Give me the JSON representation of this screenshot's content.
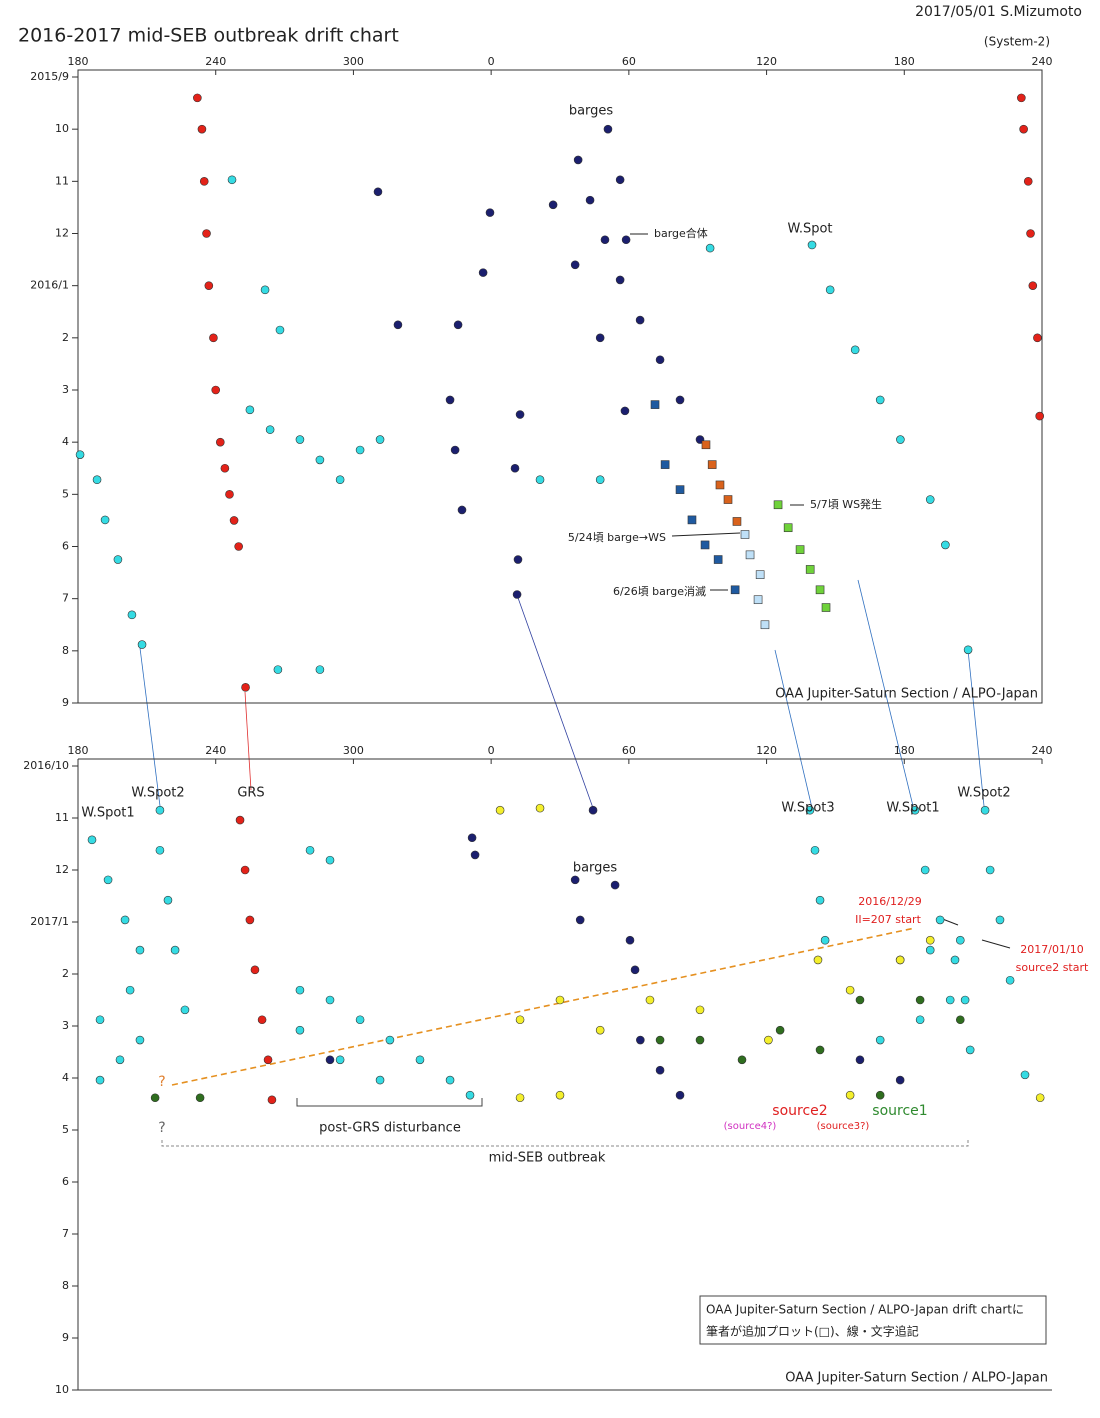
{
  "header": {
    "date_author": "2017/05/01  S.Mizumoto",
    "title": "2016-2017 mid-SEB outbreak drift chart",
    "system": "(System-2)"
  },
  "note": {
    "lines": [
      "OAA Jupiter-Saturn Section / ALPO-Japan drift chartに",
      "筆者が追加プロット(□)、線・文字追記"
    ]
  },
  "chart_data": [
    {
      "type": "scatter",
      "xlim": [
        180,
        600
      ],
      "xticks": [
        180,
        240,
        300,
        {
          "value": 360,
          "label": "0"
        },
        {
          "value": 420,
          "label": "60"
        },
        {
          "value": 480,
          "label": "120"
        },
        {
          "value": 540,
          "label": "180"
        },
        {
          "value": 600,
          "label": "240"
        }
      ],
      "ylim": [
        0,
        12
      ],
      "yticks": [
        {
          "value": 0,
          "label": "2015/9"
        },
        {
          "value": 1,
          "label": "10"
        },
        {
          "value": 2,
          "label": "11"
        },
        {
          "value": 3,
          "label": "12"
        },
        {
          "value": 4,
          "label": "2016/1"
        },
        {
          "value": 5,
          "label": "2"
        },
        {
          "value": 6,
          "label": "3"
        },
        {
          "value": 7,
          "label": "4"
        },
        {
          "value": 8,
          "label": "5"
        },
        {
          "value": 9,
          "label": "6"
        },
        {
          "value": 10,
          "label": "7"
        },
        {
          "value": 11,
          "label": "8"
        },
        {
          "value": 12,
          "label": "9"
        }
      ],
      "annotations": [
        "barges",
        "barge合体",
        "W.Spot",
        "5/7頃 WS発生",
        "5/24頃 barge→WS",
        "6/26頃 barge消滅"
      ],
      "credit": "OAA Jupiter-Saturn Section / ALPO-Japan",
      "series": [
        {
          "color": "#e32219",
          "marker": "circle",
          "x": [
            232,
            234,
            235,
            236,
            237,
            239,
            240,
            242,
            244,
            246,
            248,
            250,
            253,
            591,
            592,
            594,
            595,
            596,
            598,
            599
          ],
          "values": [
            0.4,
            1,
            2,
            3,
            4,
            5,
            6,
            7,
            7.5,
            8,
            8.5,
            9,
            11.7,
            0.4,
            1,
            2,
            3,
            4,
            5,
            6.5
          ]
        },
        {
          "color": "#1b1f6e",
          "marker": "circle",
          "x": [
            397.9,
            403.1,
            409.6,
            416.2,
            424.9,
            433.6,
            442.3,
            451.0,
            410.9,
            416.2,
            418.8,
            387.0,
            396.6,
            407.5,
            418.3,
            310.7,
            319.4,
            345.6,
            359.5,
            356.5,
            342.1,
            344.3,
            347.3,
            372.6,
            370.4,
            371.7,
            371.3
          ],
          "values": [
            1.59,
            2.36,
            3.12,
            3.89,
            4.66,
            5.42,
            6.19,
            6.95,
            1.0,
            1.97,
            3.12,
            2.45,
            3.6,
            5.0,
            6.4,
            2.2,
            4.75,
            4.75,
            2.6,
            3.75,
            6.19,
            7.15,
            8.3,
            6.47,
            7.5,
            9.25,
            9.92
          ]
        },
        {
          "color": "#35dbe3",
          "marker": "circle",
          "x": [
            499.8,
            507.7,
            518.6,
            529.5,
            538.3,
            551.3,
            557.9,
            567.8,
            180.9,
            188.3,
            191.8,
            197.4,
            203.5,
            207.9,
            254.9,
            263.7,
            276.7,
            285.4,
            294.2,
            302.9,
            311.6,
            261.5,
            268.0,
            381.3,
            407.5,
            247.1,
            267.1,
            285.4,
            455.4
          ],
          "values": [
            3.22,
            4.08,
            5.23,
            6.19,
            6.95,
            8.1,
            8.97,
            10.98,
            7.24,
            7.72,
            8.49,
            9.25,
            10.31,
            10.88,
            6.38,
            6.76,
            6.95,
            7.34,
            7.72,
            7.15,
            6.95,
            4.08,
            4.85,
            7.72,
            7.72,
            1.97,
            11.36,
            11.36,
            3.28
          ]
        },
        {
          "color": "#d9621c",
          "marker": "square",
          "x": [
            453.6,
            456.3,
            459.7,
            463.2,
            467.1
          ],
          "values": [
            7.05,
            7.43,
            7.82,
            8.1,
            8.52
          ]
        },
        {
          "color": "#1f5aa0",
          "marker": "square",
          "x": [
            431.4,
            435.8,
            442.3,
            447.5,
            453.2,
            458.9,
            466.3
          ],
          "values": [
            6.28,
            7.43,
            7.91,
            8.49,
            8.97,
            9.25,
            9.83
          ]
        },
        {
          "color": "#bfe0f7",
          "marker": "square",
          "x": [
            470.6,
            472.8,
            477.2,
            476.3,
            479.3
          ],
          "values": [
            8.77,
            9.16,
            9.54,
            10.02,
            10.5
          ]
        },
        {
          "color": "#6fd23a",
          "marker": "square",
          "x": [
            485.0,
            489.4,
            494.6,
            499.0,
            503.3,
            505.9
          ],
          "values": [
            8.2,
            8.64,
            9.06,
            9.44,
            9.83,
            10.17
          ]
        }
      ]
    },
    {
      "type": "scatter",
      "xlim": [
        180,
        600
      ],
      "xticks": [
        180,
        240,
        300,
        {
          "value": 360,
          "label": "0"
        },
        {
          "value": 420,
          "label": "60"
        },
        {
          "value": 480,
          "label": "120"
        },
        {
          "value": 540,
          "label": "180"
        },
        {
          "value": 600,
          "label": "240"
        }
      ],
      "ylim": [
        0,
        12
      ],
      "yticks": [
        {
          "value": 0,
          "label": "2016/10"
        },
        {
          "value": 1,
          "label": "11"
        },
        {
          "value": 2,
          "label": "12"
        },
        {
          "value": 3,
          "label": "2017/1"
        },
        {
          "value": 4,
          "label": "2"
        },
        {
          "value": 5,
          "label": "3"
        },
        {
          "value": 6,
          "label": "4"
        },
        {
          "value": 7,
          "label": "5"
        },
        {
          "value": 8,
          "label": "6"
        },
        {
          "value": 9,
          "label": "7"
        },
        {
          "value": 10,
          "label": "8"
        },
        {
          "value": 11,
          "label": "9"
        },
        {
          "value": 12,
          "label": "10"
        }
      ],
      "annotations": [
        "W.Spot1",
        "W.Spot2",
        "GRS",
        "barges",
        "W.Spot3",
        "W.Spot1",
        "W.Spot2",
        "2016/12/29",
        "II=207 start",
        "2017/01/10",
        "source2 start",
        "?",
        "?",
        "post-GRS disturbance",
        "mid-SEB outbreak",
        "source2",
        "source1",
        "(source4?)",
        "(source3?)"
      ],
      "credit": "OAA Jupiter-Saturn Section / ALPO-Japan",
      "series": [
        {
          "color": "#e32219",
          "marker": "circle",
          "x": [
            250.6,
            252.8,
            254.9,
            257.1,
            260.2,
            262.8,
            264.5
          ],
          "values": [
            1.04,
            2.0,
            2.96,
            3.92,
            4.88,
            5.65,
            6.42
          ]
        },
        {
          "color": "#35dbe3",
          "marker": "circle",
          "x": [
            498.9,
            501.1,
            503.3,
            505.5,
            544.7,
            549.1,
            555.6,
            562.1,
            566.5,
            568.7,
            575.2,
            577.4,
            581.7,
            586.1,
            592.6,
            215.7,
            215.7,
            219.2,
            222.3,
            226.6,
            186.1,
            193.1,
            200.5,
            207.0,
            276.7,
            289.8,
            302.9,
            315.9,
            329.0,
            342.1,
            350.8,
            276.7,
            294.2,
            311.6,
            281.1,
            289.8,
            538.2,
            551.3,
            564.4,
            529.5,
            546.9,
            560.0,
            189.6,
            198.3,
            207.0,
            189.6,
            202.7
          ],
          "values": [
            0.85,
            1.62,
            2.58,
            3.35,
            0.85,
            2.0,
            2.96,
            3.73,
            4.5,
            5.46,
            0.85,
            2.0,
            2.96,
            4.12,
            5.94,
            0.85,
            1.62,
            2.58,
            3.54,
            4.69,
            1.42,
            2.19,
            2.96,
            3.54,
            4.31,
            4.5,
            4.88,
            5.27,
            5.65,
            6.04,
            6.33,
            5.08,
            5.65,
            6.04,
            1.62,
            1.81,
            3.73,
            3.54,
            3.35,
            5.27,
            4.88,
            4.5,
            6.04,
            5.65,
            5.27,
            4.88,
            4.31
          ]
        },
        {
          "color": "#1b1f6e",
          "marker": "circle",
          "x": [
            404.4,
            351.7,
            353.0,
            396.6,
            398.8,
            414.0,
            420.5,
            422.7,
            425.0,
            433.6,
            442.3,
            520.7,
            538.2,
            289.8
          ],
          "values": [
            0.85,
            1.38,
            1.71,
            2.19,
            2.96,
            2.29,
            3.35,
            3.92,
            5.27,
            5.85,
            6.33,
            5.65,
            6.04,
            5.65
          ]
        },
        {
          "color": "#f4ef2c",
          "marker": "circle",
          "x": [
            372.6,
            390.0,
            407.5,
            429.2,
            451.0,
            480.8,
            502.4,
            516.4,
            538.2,
            551.3,
            390.0,
            372.6,
            599.2,
            516.4,
            363.9,
            381.3
          ],
          "values": [
            4.88,
            4.5,
            5.08,
            4.5,
            4.69,
            5.27,
            3.73,
            4.31,
            3.73,
            3.35,
            6.33,
            6.38,
            6.38,
            6.33,
            0.85,
            0.81
          ]
        },
        {
          "color": "#2f6e1f",
          "marker": "circle",
          "x": [
            451.0,
            469.3,
            485.9,
            503.3,
            520.7,
            433.6,
            546.9,
            233.2,
            213.6,
            529.5,
            564.4
          ],
          "values": [
            5.27,
            5.65,
            5.08,
            5.46,
            4.5,
            5.27,
            4.5,
            6.38,
            6.38,
            6.33,
            4.88
          ]
        }
      ]
    }
  ]
}
